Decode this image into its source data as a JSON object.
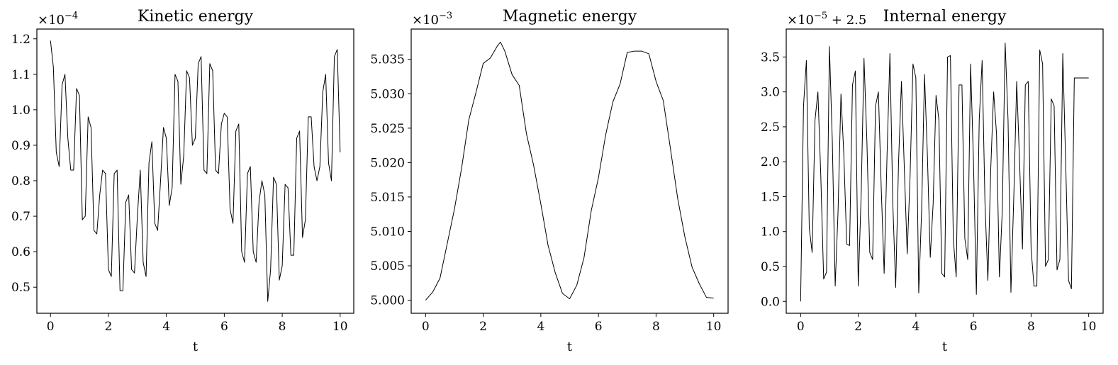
{
  "chart_data": [
    {
      "type": "line",
      "title": "Kinetic energy",
      "xlabel": "t",
      "ylabel": "",
      "multiplier_base": "×10",
      "multiplier_exp": "−4",
      "multiplier_suffix": "",
      "xlim": [
        -0.47,
        10.47
      ],
      "ylim": [
        0.4265,
        1.2275
      ],
      "xticks": [
        0,
        2,
        4,
        6,
        8,
        10
      ],
      "xtick_labels": [
        "0",
        "2",
        "4",
        "6",
        "8",
        "10"
      ],
      "yticks": [
        0.5,
        0.6,
        0.7,
        0.8,
        0.9,
        1.0,
        1.1,
        1.2
      ],
      "ytick_labels": [
        "0.5",
        "0.6",
        "0.7",
        "0.8",
        "0.9",
        "1.0",
        "1.1",
        "1.2"
      ],
      "line_color": "#000000",
      "series": [
        {
          "x": [
            0,
            0.1,
            0.2,
            0.3,
            0.4,
            0.5,
            0.6,
            0.7,
            0.8,
            0.9,
            1.0,
            1.1,
            1.2,
            1.3,
            1.4,
            1.5,
            1.6,
            1.7,
            1.8,
            1.9,
            2.0,
            2.1,
            2.2,
            2.3,
            2.4,
            2.5,
            2.6,
            2.7,
            2.8,
            2.9,
            3.0,
            3.1,
            3.2,
            3.3,
            3.4,
            3.5,
            3.6,
            3.7,
            3.8,
            3.9,
            4.0,
            4.1,
            4.2,
            4.3,
            4.4,
            4.5,
            4.6,
            4.7,
            4.8,
            4.9,
            5.0,
            5.1,
            5.2,
            5.3,
            5.4,
            5.5,
            5.6,
            5.7,
            5.8,
            5.9,
            6.0,
            6.1,
            6.2,
            6.3,
            6.4,
            6.5,
            6.6,
            6.7,
            6.8,
            6.9,
            7.0,
            7.1,
            7.2,
            7.3,
            7.4,
            7.5,
            7.6,
            7.7,
            7.8,
            7.9,
            8.0,
            8.1,
            8.2,
            8.3,
            8.4,
            8.5,
            8.6,
            8.7,
            8.8,
            8.9,
            9.0,
            9.1,
            9.2,
            9.3,
            9.4,
            9.5,
            9.6,
            9.7,
            9.8,
            9.9,
            10.0
          ],
          "y": [
            1.195,
            1.12,
            0.88,
            0.84,
            1.07,
            1.1,
            0.92,
            0.83,
            0.83,
            1.06,
            1.04,
            0.69,
            0.7,
            0.98,
            0.95,
            0.66,
            0.65,
            0.76,
            0.83,
            0.82,
            0.55,
            0.53,
            0.82,
            0.83,
            0.49,
            0.49,
            0.74,
            0.76,
            0.55,
            0.54,
            0.7,
            0.83,
            0.57,
            0.53,
            0.85,
            0.91,
            0.68,
            0.66,
            0.8,
            0.95,
            0.92,
            0.73,
            0.78,
            1.1,
            1.08,
            0.79,
            0.87,
            1.11,
            1.09,
            0.9,
            0.92,
            1.13,
            1.15,
            0.83,
            0.82,
            1.13,
            1.11,
            0.83,
            0.82,
            0.96,
            0.99,
            0.98,
            0.72,
            0.68,
            0.94,
            0.96,
            0.6,
            0.57,
            0.82,
            0.84,
            0.6,
            0.57,
            0.74,
            0.8,
            0.76,
            0.46,
            0.55,
            0.81,
            0.79,
            0.52,
            0.56,
            0.79,
            0.78,
            0.59,
            0.59,
            0.92,
            0.94,
            0.64,
            0.69,
            0.98,
            0.98,
            0.84,
            0.8,
            0.84,
            1.05,
            1.1,
            0.85,
            0.8,
            1.15,
            1.17,
            0.88
          ]
        }
      ]
    },
    {
      "type": "line",
      "title": "Magnetic energy",
      "xlabel": "t",
      "ylabel": "",
      "multiplier_base": "×10",
      "multiplier_exp": "−3",
      "multiplier_suffix": "",
      "xlim": [
        -0.5,
        10.5
      ],
      "ylim": [
        4.9981,
        5.0394
      ],
      "xticks": [
        0,
        2,
        4,
        6,
        8,
        10
      ],
      "xtick_labels": [
        "0",
        "2",
        "4",
        "6",
        "8",
        "10"
      ],
      "yticks": [
        5.0,
        5.005,
        5.01,
        5.015,
        5.02,
        5.025,
        5.03,
        5.035
      ],
      "ytick_labels": [
        "5.000",
        "5.005",
        "5.010",
        "5.015",
        "5.020",
        "5.025",
        "5.030",
        "5.035"
      ],
      "line_color": "#000000",
      "series": [
        {
          "x": [
            0,
            0.25,
            0.5,
            0.75,
            1.0,
            1.25,
            1.5,
            1.75,
            2.0,
            2.25,
            2.5,
            2.6,
            2.75,
            3.0,
            3.25,
            3.5,
            3.75,
            4.0,
            4.25,
            4.5,
            4.75,
            5.0,
            5.25,
            5.5,
            5.75,
            6.0,
            6.25,
            6.5,
            6.75,
            7.0,
            7.25,
            7.5,
            7.75,
            8.0,
            8.25,
            8.5,
            8.75,
            9.0,
            9.25,
            9.5,
            9.75,
            10.0
          ],
          "y": [
            5.0,
            5.0012,
            5.0032,
            5.0082,
            5.0132,
            5.0192,
            5.0262,
            5.0302,
            5.0344,
            5.0352,
            5.037,
            5.0375,
            5.0362,
            5.0328,
            5.0312,
            5.0242,
            5.0196,
            5.014,
            5.008,
            5.004,
            5.001,
            5.0002,
            5.0022,
            5.0062,
            5.013,
            5.0178,
            5.024,
            5.0288,
            5.0314,
            5.036,
            5.0362,
            5.0362,
            5.0358,
            5.0318,
            5.029,
            5.022,
            5.0148,
            5.0092,
            5.0048,
            5.0024,
            5.0004,
            5.0003
          ]
        }
      ]
    },
    {
      "type": "line",
      "title": "Internal energy",
      "xlabel": "t",
      "ylabel": "",
      "multiplier_base": "×10",
      "multiplier_exp": "−5",
      "multiplier_suffix": " + 2.5",
      "xlim": [
        -0.5,
        10.5
      ],
      "ylim": [
        -0.17,
        3.9
      ],
      "xticks": [
        0,
        2,
        4,
        6,
        8,
        10
      ],
      "xtick_labels": [
        "0",
        "2",
        "4",
        "6",
        "8",
        "10"
      ],
      "yticks": [
        0.0,
        0.5,
        1.0,
        1.5,
        2.0,
        2.5,
        3.0,
        3.5
      ],
      "ytick_labels": [
        "0.0",
        "0.5",
        "1.0",
        "1.5",
        "2.0",
        "2.5",
        "3.0",
        "3.5"
      ],
      "line_color": "#000000",
      "series": [
        {
          "x": [
            0,
            0.1,
            0.2,
            0.3,
            0.4,
            0.5,
            0.6,
            0.7,
            0.8,
            0.9,
            1.0,
            1.1,
            1.2,
            1.3,
            1.4,
            1.5,
            1.6,
            1.7,
            1.8,
            1.9,
            2.0,
            2.1,
            2.2,
            2.3,
            2.4,
            2.5,
            2.6,
            2.7,
            2.8,
            2.9,
            3.0,
            3.1,
            3.2,
            3.3,
            3.4,
            3.5,
            3.6,
            3.7,
            3.8,
            3.9,
            4.0,
            4.1,
            4.2,
            4.3,
            4.4,
            4.5,
            4.6,
            4.7,
            4.8,
            4.9,
            5.0,
            5.1,
            5.2,
            5.3,
            5.4,
            5.5,
            5.6,
            5.7,
            5.8,
            5.9,
            6.0,
            6.1,
            6.2,
            6.3,
            6.4,
            6.5,
            6.6,
            6.7,
            6.8,
            6.9,
            7.0,
            7.1,
            7.2,
            7.3,
            7.4,
            7.5,
            7.6,
            7.7,
            7.8,
            7.9,
            8.0,
            8.1,
            8.2,
            8.3,
            8.4,
            8.5,
            8.6,
            8.7,
            8.8,
            8.9,
            9.0,
            9.1,
            9.2,
            9.3,
            9.4,
            9.5,
            9.6,
            9.7,
            9.8,
            9.9,
            10.0
          ],
          "y": [
            0.0,
            2.8,
            3.45,
            1.05,
            0.7,
            2.6,
            3.0,
            1.8,
            0.32,
            0.42,
            3.65,
            2.3,
            0.22,
            1.3,
            2.97,
            2.1,
            0.82,
            0.8,
            3.1,
            3.3,
            0.22,
            1.5,
            3.48,
            2.3,
            0.7,
            0.6,
            2.8,
            3.0,
            1.6,
            0.4,
            2.1,
            3.55,
            1.4,
            0.2,
            2.0,
            3.15,
            1.9,
            0.68,
            1.8,
            3.4,
            3.2,
            0.12,
            1.3,
            3.25,
            2.1,
            0.63,
            1.4,
            2.95,
            2.6,
            0.4,
            0.35,
            3.5,
            3.52,
            0.9,
            0.35,
            3.1,
            3.1,
            0.9,
            0.6,
            3.4,
            2.0,
            0.1,
            2.6,
            3.45,
            1.4,
            0.3,
            1.9,
            3.0,
            2.4,
            0.35,
            1.3,
            3.7,
            2.6,
            0.13,
            1.5,
            3.15,
            2.0,
            0.75,
            3.1,
            3.15,
            0.75,
            0.22,
            0.22,
            3.6,
            3.4,
            0.5,
            0.6,
            2.9,
            2.8,
            0.45,
            0.6,
            3.55,
            2.0,
            0.3,
            0.18,
            3.2,
            3.2,
            3.2,
            3.2,
            3.2,
            3.2
          ]
        }
      ]
    }
  ]
}
